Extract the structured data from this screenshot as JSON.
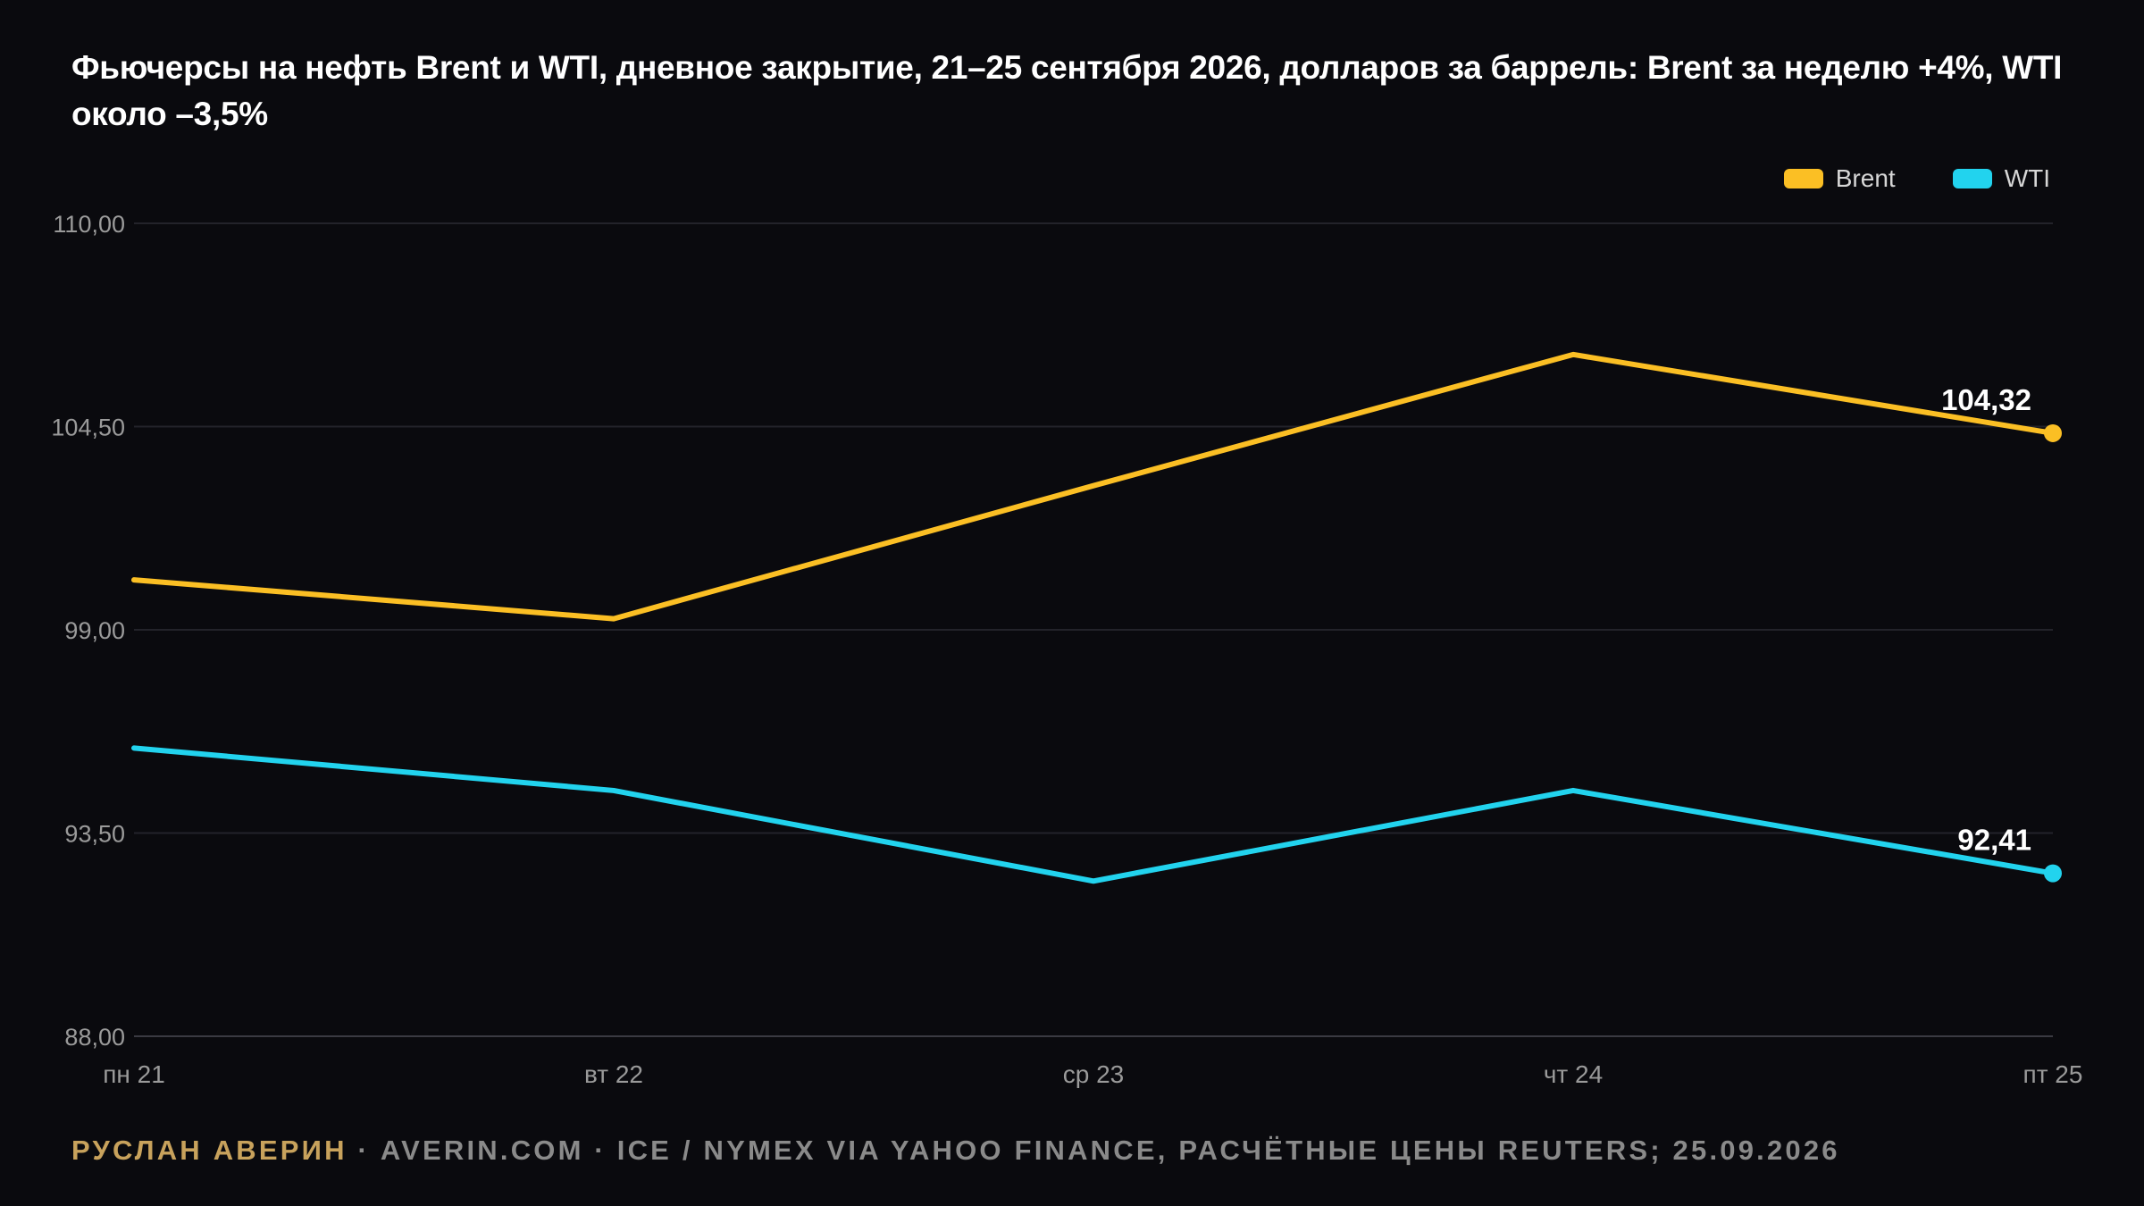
{
  "title": "Фьючерсы на нефть Brent и WTI, дневное закрытие, 21–25 сентября 2026, долларов за баррель: Brent за неделю +4%, WTI около –3,5%",
  "footer": {
    "author": "РУСЛАН АВЕРИН",
    "separator": " · ",
    "text": "AVERIN.COM · ICE / NYMEX VIA YAHOO FINANCE, РАСЧЁТНЫЕ ЦЕНЫ REUTERS; 25.09.2026"
  },
  "colors": {
    "background": "#0a0a0e",
    "brent": "#fbbf24",
    "wti": "#22d3ee",
    "grid": "#23232a",
    "axis_text": "#9a9a9a"
  },
  "chart_data": {
    "type": "line",
    "categories": [
      "пн 21",
      "вт 22",
      "ср 23",
      "чт 24",
      "пт 25"
    ],
    "series": [
      {
        "name": "Brent",
        "values": [
          100.35,
          99.3,
          102.9,
          106.45,
          104.32
        ],
        "end_label": "104,32"
      },
      {
        "name": "WTI",
        "values": [
          95.8,
          94.65,
          92.2,
          94.65,
          92.41
        ],
        "end_label": "92,41"
      }
    ],
    "ylim": [
      88,
      110
    ],
    "yticks": [
      88,
      93.5,
      99,
      104.5,
      110
    ],
    "ytick_labels": [
      "88,00",
      "93,50",
      "99,00",
      "104,50",
      "110,00"
    ],
    "grid": true,
    "legend_position": "top-right",
    "xlabel": "",
    "ylabel": ""
  }
}
